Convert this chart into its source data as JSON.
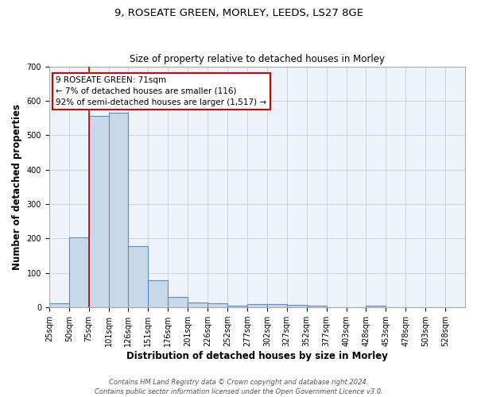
{
  "title1": "9, ROSEATE GREEN, MORLEY, LEEDS, LS27 8GE",
  "title2": "Size of property relative to detached houses in Morley",
  "xlabel": "Distribution of detached houses by size in Morley",
  "ylabel": "Number of detached properties",
  "bin_labels": [
    "25sqm",
    "50sqm",
    "75sqm",
    "101sqm",
    "126sqm",
    "151sqm",
    "176sqm",
    "201sqm",
    "226sqm",
    "252sqm",
    "277sqm",
    "302sqm",
    "327sqm",
    "352sqm",
    "377sqm",
    "403sqm",
    "428sqm",
    "453sqm",
    "478sqm",
    "503sqm",
    "528sqm"
  ],
  "bar_heights": [
    12,
    204,
    556,
    565,
    178,
    80,
    30,
    15,
    12,
    6,
    10,
    10,
    7,
    4,
    0,
    0,
    5,
    0,
    0,
    0,
    0
  ],
  "bar_color": "#c9d9ec",
  "bar_edge_color": "#5b8db8",
  "grid_color": "#cccccc",
  "background_color": "#eef2f9",
  "red_line_x": 2.0,
  "annotation_text": "9 ROSEATE GREEN: 71sqm\n← 7% of detached houses are smaller (116)\n92% of semi-detached houses are larger (1,517) →",
  "annotation_box_color": "#ffffff",
  "annotation_box_edge": "#cc0000",
  "footnote": "Contains HM Land Registry data © Crown copyright and database right 2024.\nContains public sector information licensed under the Open Government Licence v3.0.",
  "ylim": [
    0,
    700
  ],
  "yticks": [
    0,
    100,
    200,
    300,
    400,
    500,
    600,
    700
  ],
  "title1_fontsize": 9.5,
  "title2_fontsize": 8.5,
  "xlabel_fontsize": 8.5,
  "ylabel_fontsize": 8.5,
  "tick_fontsize": 7.0,
  "annot_fontsize": 7.5,
  "footnote_fontsize": 6.0
}
